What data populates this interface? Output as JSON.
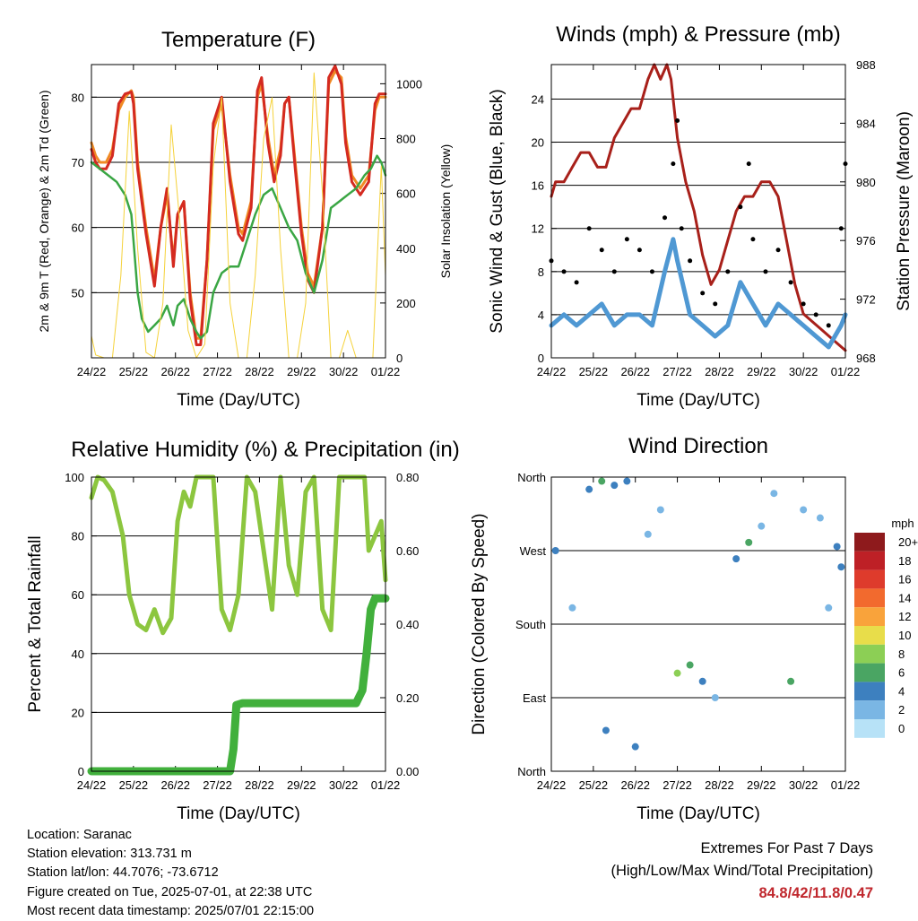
{
  "chart_data": [
    {
      "id": "temp",
      "type": "line",
      "title": "Temperature (F)",
      "xlabel": "Time (Day/UTC)",
      "ylabel": "2m & 9m T (Red, Orange) & 2m Td (Green)",
      "y2label": "Solar Insolation (Yellow)",
      "x_ticks": [
        "24/22",
        "25/22",
        "26/22",
        "27/22",
        "28/22",
        "29/22",
        "30/22",
        "01/22"
      ],
      "ylim": [
        40,
        85
      ],
      "y_ticks": [
        50,
        60,
        70,
        80
      ],
      "y2lim": [
        0,
        1070
      ],
      "y2_ticks": [
        0,
        200,
        400,
        600,
        800,
        1000
      ],
      "grid": true,
      "series": [
        {
          "axis": "left",
          "color": "#f08a24",
          "x": [
            0,
            0.1,
            0.2,
            0.35,
            0.5,
            0.65,
            0.8,
            0.95,
            1.0,
            1.1,
            1.3,
            1.5,
            1.65,
            1.8,
            1.95,
            2.05,
            2.2,
            2.35,
            2.5,
            2.6,
            2.75,
            2.9,
            3.1,
            3.3,
            3.5,
            3.6,
            3.8,
            3.95,
            4.05,
            4.2,
            4.35,
            4.5,
            4.6,
            4.7,
            4.85,
            5.0,
            5.15,
            5.3,
            5.5,
            5.65,
            5.8,
            5.95,
            6.05,
            6.2,
            6.4,
            6.6,
            6.75,
            6.85,
            7.0
          ],
          "y": [
            73,
            71,
            70,
            70,
            72,
            78,
            80,
            81,
            80,
            70,
            60,
            52,
            60,
            65,
            55,
            62,
            64,
            50,
            43,
            43,
            55,
            75,
            79,
            68,
            60,
            59,
            64,
            80,
            82,
            74,
            68,
            72,
            79,
            80,
            70,
            60,
            53,
            51,
            60,
            82,
            84,
            83,
            74,
            68,
            66,
            68,
            78,
            80,
            80
          ]
        },
        {
          "axis": "left",
          "color": "#d42a20",
          "x": [
            0,
            0.1,
            0.2,
            0.35,
            0.5,
            0.65,
            0.8,
            0.95,
            1.0,
            1.1,
            1.3,
            1.5,
            1.65,
            1.8,
            1.95,
            2.05,
            2.2,
            2.35,
            2.5,
            2.6,
            2.75,
            2.9,
            3.1,
            3.3,
            3.5,
            3.6,
            3.8,
            3.95,
            4.05,
            4.2,
            4.35,
            4.5,
            4.6,
            4.7,
            4.85,
            5.0,
            5.15,
            5.3,
            5.5,
            5.65,
            5.8,
            5.95,
            6.05,
            6.2,
            6.4,
            6.6,
            6.75,
            6.85,
            7.0
          ],
          "y": [
            72,
            70,
            69,
            69,
            71,
            79,
            80.5,
            80.8,
            79,
            69,
            59,
            51,
            60,
            66,
            54,
            62,
            64,
            49,
            42,
            42,
            55,
            76,
            80,
            67,
            59,
            58,
            63,
            81,
            83,
            73,
            67,
            71,
            79,
            80,
            69,
            59,
            52,
            50,
            60,
            83,
            84.8,
            82,
            73,
            67,
            65,
            67,
            79,
            80.5,
            80.5
          ]
        },
        {
          "axis": "left",
          "color": "#3aa644",
          "x": [
            0,
            0.2,
            0.4,
            0.6,
            0.8,
            0.95,
            1.0,
            1.1,
            1.2,
            1.35,
            1.5,
            1.65,
            1.8,
            1.95,
            2.05,
            2.2,
            2.35,
            2.5,
            2.6,
            2.75,
            2.9,
            3.1,
            3.3,
            3.5,
            3.7,
            3.9,
            4.1,
            4.3,
            4.5,
            4.7,
            4.9,
            5.1,
            5.3,
            5.5,
            5.7,
            5.9,
            6.1,
            6.3,
            6.5,
            6.65,
            6.8,
            6.9,
            7.0
          ],
          "y": [
            70,
            69,
            68,
            67,
            65,
            62,
            58,
            50,
            46,
            44,
            45,
            46,
            48,
            45,
            48,
            49,
            46,
            44,
            43,
            44,
            50,
            53,
            54,
            54,
            58,
            62,
            65,
            66,
            63,
            60,
            58,
            53,
            50,
            55,
            63,
            64,
            65,
            66,
            68,
            69,
            71,
            70,
            68
          ]
        },
        {
          "axis": "right",
          "color": "#f5d23a",
          "x": [
            0,
            0.1,
            0.3,
            0.5,
            0.7,
            0.9,
            1.1,
            1.3,
            1.5,
            1.7,
            1.9,
            2.1,
            2.3,
            2.5,
            2.7,
            2.9,
            3.1,
            3.3,
            3.5,
            3.7,
            3.9,
            4.1,
            4.3,
            4.5,
            4.7,
            4.9,
            5.1,
            5.3,
            5.5,
            5.7,
            5.9,
            6.1,
            6.3,
            6.5,
            6.7,
            6.9,
            7.0
          ],
          "y": [
            80,
            10,
            0,
            0,
            300,
            900,
            400,
            20,
            0,
            200,
            850,
            500,
            100,
            0,
            50,
            700,
            950,
            200,
            0,
            0,
            300,
            800,
            950,
            400,
            0,
            0,
            200,
            1040,
            600,
            0,
            0,
            100,
            0,
            0,
            0,
            700,
            300
          ]
        }
      ]
    },
    {
      "id": "winds",
      "type": "line",
      "title": "Winds (mph) & Pressure (mb)",
      "xlabel": "Time (Day/UTC)",
      "ylabel": "Sonic Wind & Gust (Blue, Black)",
      "y2label": "Station Pressure (Maroon)",
      "x_ticks": [
        "24/22",
        "25/22",
        "26/22",
        "27/22",
        "28/22",
        "29/22",
        "30/22",
        "01/22"
      ],
      "ylim": [
        0,
        27.2
      ],
      "y_ticks": [
        0,
        4,
        8,
        12,
        16,
        20,
        24
      ],
      "y2lim": [
        968,
        988
      ],
      "y2_ticks": [
        968,
        972,
        976,
        980,
        984,
        988
      ],
      "grid": true,
      "series": [
        {
          "axis": "right",
          "color": "#a8201a",
          "name": "Station Pressure",
          "x": [
            0,
            0.1,
            0.3,
            0.5,
            0.7,
            0.9,
            1.1,
            1.3,
            1.5,
            1.7,
            1.9,
            2.1,
            2.3,
            2.45,
            2.6,
            2.75,
            2.85,
            3.0,
            3.2,
            3.4,
            3.6,
            3.8,
            4.0,
            4.2,
            4.4,
            4.6,
            4.8,
            5.0,
            5.2,
            5.4,
            5.6,
            5.8,
            6.0,
            6.2,
            6.4,
            6.6,
            6.8,
            7.0
          ],
          "y": [
            979,
            980,
            980,
            981,
            982,
            982,
            981,
            981,
            983,
            984,
            985,
            985,
            987,
            988,
            987,
            988,
            987,
            983,
            980,
            978,
            975,
            973,
            974,
            976,
            978,
            979,
            979,
            980,
            980,
            979,
            976,
            973,
            971,
            970.5,
            970,
            969.5,
            969,
            968.5
          ]
        },
        {
          "axis": "left",
          "color": "#4f98d3",
          "name": "Sonic Wind",
          "x": [
            0,
            0.3,
            0.6,
            0.9,
            1.2,
            1.5,
            1.8,
            2.1,
            2.4,
            2.7,
            2.9,
            3.0,
            3.3,
            3.6,
            3.9,
            4.2,
            4.5,
            4.8,
            5.1,
            5.4,
            5.7,
            6.0,
            6.3,
            6.6,
            6.9,
            7.0
          ],
          "y": [
            3,
            4,
            3,
            4,
            5,
            3,
            4,
            4,
            3,
            8,
            11,
            9,
            4,
            3,
            2,
            3,
            7,
            5,
            3,
            5,
            4,
            3,
            2,
            1,
            3,
            4
          ]
        },
        {
          "axis": "left",
          "color": "#000000",
          "name": "Gust",
          "x": [
            0,
            0.3,
            0.6,
            0.9,
            1.2,
            1.5,
            1.8,
            2.1,
            2.4,
            2.7,
            2.9,
            3.0,
            3.1,
            3.3,
            3.6,
            3.9,
            4.2,
            4.5,
            4.7,
            4.8,
            5.1,
            5.4,
            5.7,
            6.0,
            6.3,
            6.6,
            6.9,
            7.0
          ],
          "y": [
            9,
            8,
            7,
            12,
            10,
            8,
            11,
            10,
            8,
            13,
            18,
            22,
            12,
            9,
            6,
            5,
            8,
            14,
            18,
            11,
            8,
            10,
            7,
            5,
            4,
            3,
            12,
            18
          ]
        }
      ]
    },
    {
      "id": "rh",
      "type": "line",
      "title": "Relative Humidity (%) & Precipitation (in)",
      "xlabel": "Time (Day/UTC)",
      "ylabel": "Percent & Total Rainfall",
      "x_ticks": [
        "24/22",
        "25/22",
        "26/22",
        "27/22",
        "28/22",
        "29/22",
        "30/22",
        "01/22"
      ],
      "ylim": [
        0,
        100
      ],
      "y_ticks": [
        0,
        20,
        40,
        60,
        80,
        100
      ],
      "y2lim": [
        0,
        0.8
      ],
      "y2_ticks": [
        "0.00",
        "0.20",
        "0.40",
        "0.60",
        "0.80"
      ],
      "grid": true,
      "series": [
        {
          "axis": "left",
          "color": "#8cc63f",
          "name": "RH",
          "x": [
            0,
            0.15,
            0.3,
            0.5,
            0.75,
            0.9,
            1.1,
            1.3,
            1.5,
            1.7,
            1.9,
            2.05,
            2.2,
            2.35,
            2.5,
            2.7,
            2.9,
            3.1,
            3.3,
            3.5,
            3.7,
            3.9,
            4.1,
            4.3,
            4.5,
            4.7,
            4.9,
            5.1,
            5.3,
            5.5,
            5.7,
            5.9,
            6.1,
            6.3,
            6.5,
            6.6,
            6.75,
            6.9,
            7.0
          ],
          "y": [
            93,
            100,
            99,
            95,
            80,
            60,
            50,
            48,
            55,
            47,
            52,
            85,
            95,
            90,
            100,
            100,
            100,
            55,
            48,
            60,
            100,
            95,
            75,
            55,
            100,
            70,
            60,
            95,
            100,
            55,
            48,
            100,
            100,
            100,
            100,
            75,
            80,
            85,
            65
          ]
        },
        {
          "axis": "right",
          "color": "#41b03c",
          "name": "Precipitation",
          "x": [
            0,
            3.3,
            3.38,
            3.45,
            3.6,
            4.5,
            5.5,
            6.0,
            6.3,
            6.45,
            6.55,
            6.65,
            6.75,
            7.0
          ],
          "y": [
            0,
            0,
            0.06,
            0.18,
            0.185,
            0.185,
            0.185,
            0.185,
            0.185,
            0.22,
            0.32,
            0.44,
            0.47,
            0.47
          ]
        }
      ]
    },
    {
      "id": "direction",
      "type": "scatter",
      "title": "Wind Direction",
      "xlabel": "Time (Day/UTC)",
      "ylabel": "Direction (Colored By Speed)",
      "x_ticks": [
        "24/22",
        "25/22",
        "26/22",
        "27/22",
        "28/22",
        "29/22",
        "30/22",
        "01/22"
      ],
      "y_ticks": [
        "North",
        "East",
        "South",
        "West",
        "North"
      ],
      "ylim": [
        0,
        360
      ],
      "grid": true,
      "legend": {
        "title": "mph",
        "placement": "right",
        "labels": [
          "20+",
          "18",
          "16",
          "14",
          "12",
          "10",
          "8",
          "6",
          "4",
          "2",
          "0"
        ],
        "colors": [
          "#8e1a1c",
          "#be2026",
          "#de3b2c",
          "#f26a2e",
          "#f9a33b",
          "#e8dd4a",
          "#8ccf55",
          "#4aa563",
          "#3d80bf",
          "#7ab6e4",
          "#b7e2f7"
        ]
      },
      "clusters": [
        {
          "x": 0.1,
          "y": 270,
          "speed": 3
        },
        {
          "x": 0.5,
          "y": 200,
          "speed": 1
        },
        {
          "x": 0.9,
          "y": 345,
          "speed": 4
        },
        {
          "x": 1.2,
          "y": 355,
          "speed": 5
        },
        {
          "x": 1.5,
          "y": 350,
          "speed": 4
        },
        {
          "x": 1.8,
          "y": 355,
          "speed": 3
        },
        {
          "x": 1.3,
          "y": 50,
          "speed": 3
        },
        {
          "x": 2.0,
          "y": 30,
          "speed": 3
        },
        {
          "x": 2.3,
          "y": 290,
          "speed": 2
        },
        {
          "x": 2.6,
          "y": 320,
          "speed": 1
        },
        {
          "x": 3.0,
          "y": 120,
          "speed": 7
        },
        {
          "x": 3.3,
          "y": 130,
          "speed": 5
        },
        {
          "x": 3.6,
          "y": 110,
          "speed": 4
        },
        {
          "x": 3.9,
          "y": 90,
          "speed": 2
        },
        {
          "x": 4.4,
          "y": 260,
          "speed": 3
        },
        {
          "x": 4.7,
          "y": 280,
          "speed": 6
        },
        {
          "x": 5.0,
          "y": 300,
          "speed": 2
        },
        {
          "x": 5.3,
          "y": 340,
          "speed": 2
        },
        {
          "x": 5.7,
          "y": 110,
          "speed": 5
        },
        {
          "x": 6.0,
          "y": 320,
          "speed": 1
        },
        {
          "x": 6.4,
          "y": 310,
          "speed": 2
        },
        {
          "x": 6.8,
          "y": 275,
          "speed": 3
        },
        {
          "x": 6.6,
          "y": 200,
          "speed": 1
        },
        {
          "x": 6.9,
          "y": 250,
          "speed": 3
        }
      ]
    }
  ],
  "footer": {
    "location": "Location: Saranac",
    "elevation": "Station elevation: 313.731 m",
    "latlon": "Station lat/lon: 44.7076; -73.6712",
    "created": "Figure created on Tue, 2025-07-01, at 22:38 UTC",
    "recent": "Most recent data timestamp: 2025/07/01 22:15:00",
    "extremes_title": "Extremes For Past 7 Days",
    "extremes_subtitle": "(High/Low/Max Wind/Total Precipitation)",
    "extremes_values": "84.8/42/11.8/0.47"
  }
}
